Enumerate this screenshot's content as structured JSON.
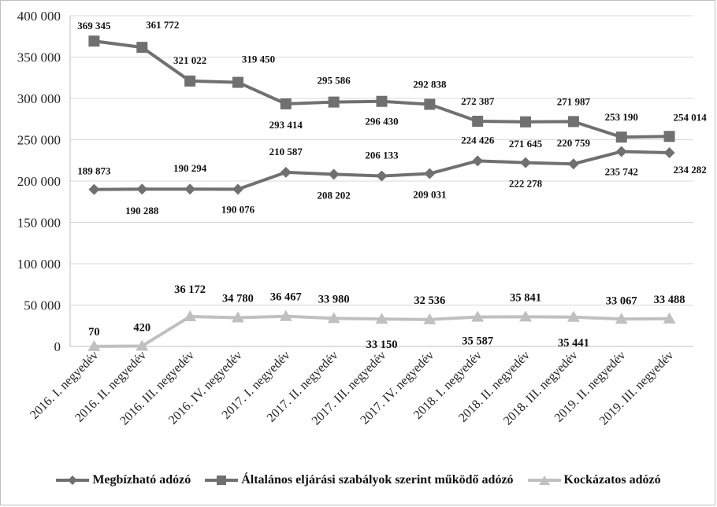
{
  "chart_data": {
    "type": "line",
    "title": "",
    "xlabel": "",
    "ylabel": "",
    "ylim": [
      0,
      400000
    ],
    "yticks": [
      0,
      50000,
      100000,
      150000,
      200000,
      250000,
      300000,
      350000,
      400000
    ],
    "ytick_labels": [
      "0",
      "50 000",
      "100 000",
      "150 000",
      "200 000",
      "250 000",
      "300 000",
      "350 000",
      "400 000"
    ],
    "categories": [
      "2016. I. negyedév",
      "2016. II. negyedév",
      "2016. III. negyedév",
      "2016. IV. negyedév",
      "2017. I. negyedév",
      "2017. II. negyedév",
      "2017. III. negyedév",
      "2017. IV. negyedév",
      "2018. I. negyedév",
      "2018. II. negyedév",
      "2018. III. negyedév",
      "2019. II. negyedév",
      "2019. III. negyedév"
    ],
    "grid": "horizontal",
    "legend_position": "bottom",
    "series": [
      {
        "name": "Megbízható adózó",
        "marker": "diamond",
        "color": "#707070",
        "values": [
          189873,
          190288,
          190294,
          190076,
          210587,
          208202,
          206133,
          209031,
          224426,
          222278,
          220759,
          235742,
          234282
        ],
        "labels": [
          "189 873",
          "190 288",
          "190 294",
          "190 076",
          "210 587",
          "208 202",
          "206 133",
          "209 031",
          "224 426",
          "222 278",
          "220 759",
          "235 742",
          "234 282"
        ]
      },
      {
        "name": "Általános eljárási szabályok szerint működő adózó",
        "marker": "square",
        "color": "#707070",
        "values": [
          369345,
          361772,
          321022,
          319450,
          293414,
          295586,
          296430,
          292838,
          272387,
          271645,
          271987,
          253190,
          254014
        ],
        "labels": [
          "369 345",
          "361 772",
          "321 022",
          "319 450",
          "293 414",
          "295 586",
          "296 430",
          "292 838",
          "272 387",
          "271 645",
          "271 987",
          "253 190",
          "254 014"
        ]
      },
      {
        "name": "Kockázatos adózó",
        "marker": "triangle",
        "color": "#c0c0c0",
        "values": [
          70,
          420,
          36172,
          34780,
          36467,
          33980,
          33150,
          32536,
          35587,
          35841,
          35441,
          33067,
          33488
        ],
        "labels": [
          "70",
          "420",
          "36 172",
          "34 780",
          "36 467",
          "33 980",
          "33 150",
          "32 536",
          "35 587",
          "35 841",
          "35 441",
          "33 067",
          "33 488"
        ]
      }
    ]
  }
}
